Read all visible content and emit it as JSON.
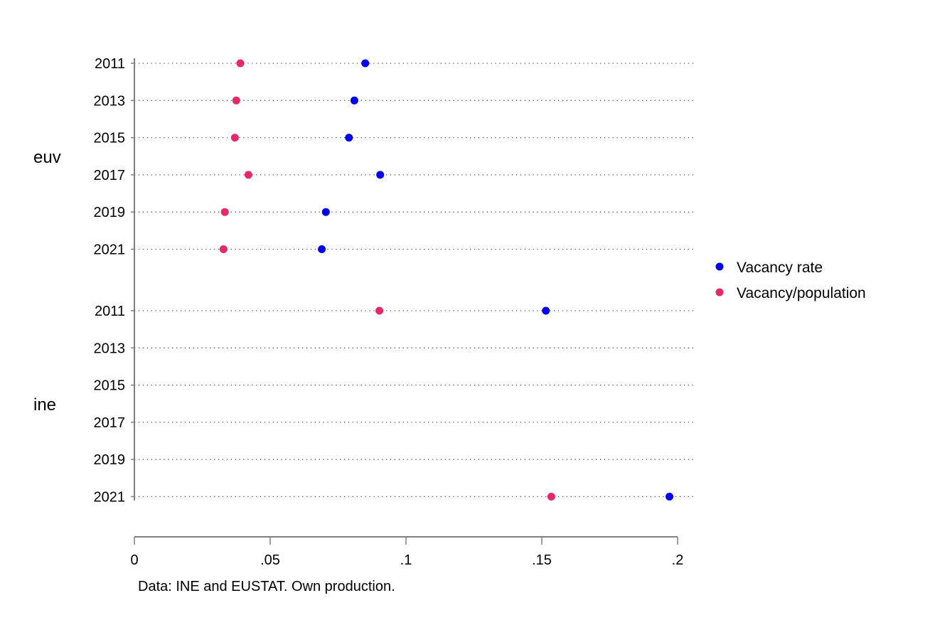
{
  "chart_data": {
    "type": "scatter",
    "subtype": "dot-plot",
    "orientation": "horizontal",
    "groups": [
      {
        "name": "euv",
        "categories": [
          "2011",
          "2013",
          "2015",
          "2017",
          "2019",
          "2021"
        ],
        "series": [
          {
            "name": "Vacancy rate",
            "values": [
              0.085,
              0.081,
              0.079,
              0.0905,
              0.0705,
              0.069
            ]
          },
          {
            "name": "Vacancy/population",
            "values": [
              0.039,
              0.0375,
              0.037,
              0.042,
              0.0333,
              0.0328
            ]
          }
        ]
      },
      {
        "name": "ine",
        "categories": [
          "2011",
          "2013",
          "2015",
          "2017",
          "2019",
          "2021"
        ],
        "series": [
          {
            "name": "Vacancy rate",
            "values": [
              0.1515,
              null,
              null,
              null,
              null,
              0.197
            ]
          },
          {
            "name": "Vacancy/population",
            "values": [
              0.0902,
              null,
              null,
              null,
              null,
              0.1535
            ]
          }
        ]
      }
    ],
    "x_ticks": [
      0,
      0.05,
      0.1,
      0.15,
      0.2
    ],
    "x_tick_labels": [
      "0",
      ".05",
      ".1",
      ".15",
      ".2"
    ],
    "xlim": [
      0,
      0.2
    ],
    "grid": "dotted horizontal lines per category",
    "legend": {
      "position": "right",
      "entries": [
        "Vacancy rate",
        "Vacancy/population"
      ]
    },
    "note": "Data: INE and EUSTAT. Own production.",
    "colors": {
      "Vacancy rate": "#0000ee",
      "Vacancy/population": "#e8286a"
    }
  }
}
